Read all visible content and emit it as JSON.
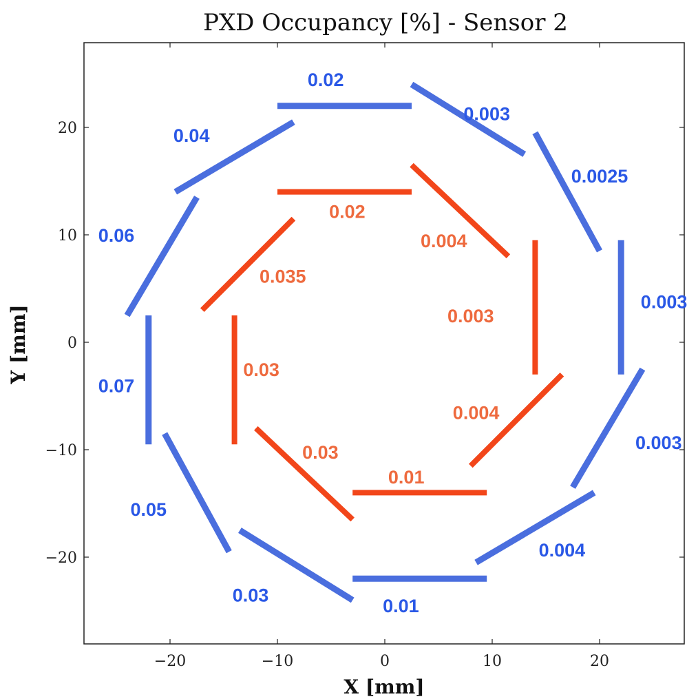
{
  "chart_data": {
    "type": "scatter",
    "title": "PXD Occupancy [%] - Sensor 2",
    "xlabel": "X [mm]",
    "ylabel": "Y [mm]",
    "xlim": [
      -28,
      28
    ],
    "ylim": [
      -28,
      28
    ],
    "xticks": [
      -20,
      -10,
      0,
      10,
      20
    ],
    "yticks": [
      -20,
      -10,
      0,
      10,
      20
    ],
    "xtick_labels": [
      "−20",
      "−10",
      "0",
      "10",
      "20"
    ],
    "ytick_labels": [
      "−20",
      "−10",
      "0",
      "10",
      "20"
    ],
    "grid": false,
    "colors": {
      "outer": "#4a6ede",
      "outer_text": "#2a58e6",
      "inner": "#f2461a",
      "inner_text": "#ee6a3e"
    },
    "series": [
      {
        "layer": "outer",
        "ladders": [
          {
            "x1": -10,
            "y1": 22,
            "x2": 2.5,
            "y2": 22,
            "value": "0.02",
            "lx": -5.5,
            "ly": 24.5
          },
          {
            "x1": 2.5,
            "y1": 24,
            "x2": 13,
            "y2": 17.5,
            "value": "0.003",
            "lx": 9.5,
            "ly": 21.3
          },
          {
            "x1": 14,
            "y1": 19.5,
            "x2": 20,
            "y2": 8.5,
            "value": "0.0025",
            "lx": 20,
            "ly": 15.5
          },
          {
            "x1": 22,
            "y1": 9.5,
            "x2": 22,
            "y2": -3,
            "value": "0.003",
            "lx": 26,
            "ly": 3.8
          },
          {
            "x1": 24,
            "y1": -2.5,
            "x2": 17.5,
            "y2": -13.5,
            "value": "0.003",
            "lx": 25.5,
            "ly": -9.3
          },
          {
            "x1": 19.5,
            "y1": -14,
            "x2": 8.5,
            "y2": -20.5,
            "value": "0.004",
            "lx": 16.5,
            "ly": -19.3
          },
          {
            "x1": 9.5,
            "y1": -22,
            "x2": -3,
            "y2": -22,
            "value": "0.01",
            "lx": 1.5,
            "ly": -24.5
          },
          {
            "x1": -3,
            "y1": -24,
            "x2": -13.5,
            "y2": -17.5,
            "value": "0.03",
            "lx": -12.5,
            "ly": -23.5
          },
          {
            "x1": -14.5,
            "y1": -19.5,
            "x2": -20.5,
            "y2": -8.5,
            "value": "0.05",
            "lx": -22,
            "ly": -15.5
          },
          {
            "x1": -22,
            "y1": 2.5,
            "x2": -22,
            "y2": -9.5,
            "value": "0.07",
            "lx": -25,
            "ly": -4
          },
          {
            "x1": -24,
            "y1": 2.5,
            "x2": -17.5,
            "y2": 13.5,
            "value": "0.06",
            "lx": -25,
            "ly": 10
          },
          {
            "x1": -19.5,
            "y1": 14,
            "x2": -8.5,
            "y2": 20.5,
            "value": "0.04",
            "lx": -18,
            "ly": 19.3
          }
        ]
      },
      {
        "layer": "inner",
        "ladders": [
          {
            "x1": -10,
            "y1": 14,
            "x2": 2.5,
            "y2": 14,
            "value": "0.02",
            "lx": -3.5,
            "ly": 12.2
          },
          {
            "x1": 2.5,
            "y1": 16.5,
            "x2": 11.5,
            "y2": 8,
            "value": "0.004",
            "lx": 5.5,
            "ly": 9.5
          },
          {
            "x1": 14,
            "y1": 9.5,
            "x2": 14,
            "y2": -3,
            "value": "0.003",
            "lx": 8,
            "ly": 2.5
          },
          {
            "x1": 16.5,
            "y1": -3,
            "x2": 8,
            "y2": -11.5,
            "value": "0.004",
            "lx": 8.5,
            "ly": -6.5
          },
          {
            "x1": 9.5,
            "y1": -14,
            "x2": -3,
            "y2": -14,
            "value": "0.01",
            "lx": 2,
            "ly": -12.5
          },
          {
            "x1": -3,
            "y1": -16.5,
            "x2": -12,
            "y2": -8,
            "value": "0.03",
            "lx": -6,
            "ly": -10.2
          },
          {
            "x1": -14,
            "y1": 2.5,
            "x2": -14,
            "y2": -9.5,
            "value": "0.03",
            "lx": -11.5,
            "ly": -2.5
          },
          {
            "x1": -17,
            "y1": 3,
            "x2": -8.5,
            "y2": 11.5,
            "value": "0.035",
            "lx": -9.5,
            "ly": 6.2
          }
        ]
      }
    ]
  }
}
